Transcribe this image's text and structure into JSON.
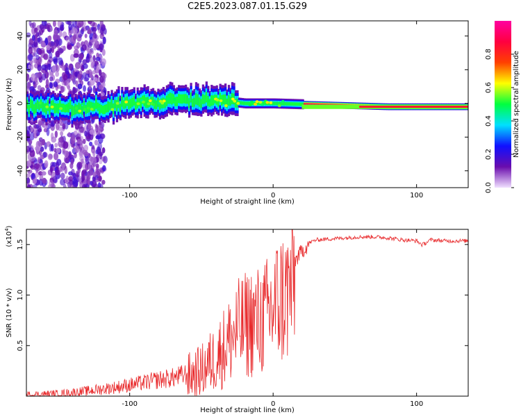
{
  "title": "C2E5.2023.087.01.15.G29",
  "chart_data": [
    {
      "type": "heatmap",
      "xlabel": "Height of straight line (km)",
      "ylabel": "Frequency (Hz)",
      "xlim": [
        -172,
        136
      ],
      "ylim": [
        -50,
        49
      ],
      "xticks": [
        -100,
        0,
        100
      ],
      "yticks": [
        -40,
        -20,
        0,
        20,
        40
      ],
      "colorbar": {
        "label": "Normalized spectral amplitude",
        "range": [
          0.0,
          1.0
        ],
        "ticks": [
          0.0,
          0.2,
          0.4,
          0.6,
          0.8
        ],
        "colors": [
          "#f0e0ff",
          "#6a0dad",
          "#1010ff",
          "#00e0ff",
          "#00ff40",
          "#ffff00",
          "#ff4000",
          "#ff0040",
          "#ff00a0"
        ]
      },
      "ridge": {
        "description_points_x": [
          -160,
          -120,
          -80,
          -40,
          -20,
          0,
          40,
          80,
          136
        ],
        "description_points_freq": [
          -3,
          -2,
          1,
          2,
          0,
          0,
          -1,
          -2,
          -2
        ]
      },
      "grid": false
    },
    {
      "type": "line",
      "xlabel": "Height of straight line (km)",
      "ylabel": "SNR (10 * v/v)",
      "yscale_label": "(x10",
      "yscale_exp": "4",
      "xlim": [
        -172,
        136
      ],
      "ylim": [
        0.0,
        1.65
      ],
      "xticks": [
        -100,
        0,
        100
      ],
      "yticks": [
        0.5,
        1.0,
        1.5
      ],
      "yticklabels": [
        "0.5",
        "1.0",
        "1.5"
      ],
      "series": [
        {
          "color": "#e8282a",
          "x": [
            -172,
            -150,
            -130,
            -110,
            -90,
            -80,
            -70,
            -60,
            -50,
            -45,
            -40,
            -35,
            -30,
            -25,
            -20,
            -15,
            -10,
            -5,
            0,
            5,
            10,
            15,
            20,
            25,
            30,
            40,
            50,
            60,
            70,
            80,
            90,
            100,
            104,
            110,
            120,
            136
          ],
          "y": [
            0.02,
            0.03,
            0.06,
            0.1,
            0.15,
            0.18,
            0.2,
            0.24,
            0.3,
            0.38,
            0.45,
            0.55,
            0.65,
            0.75,
            0.8,
            0.85,
            0.85,
            0.9,
            1.0,
            1.1,
            1.15,
            1.35,
            1.45,
            1.52,
            1.55,
            1.56,
            1.57,
            1.58,
            1.58,
            1.57,
            1.55,
            1.54,
            1.5,
            1.55,
            1.54,
            1.54
          ]
        }
      ]
    }
  ]
}
